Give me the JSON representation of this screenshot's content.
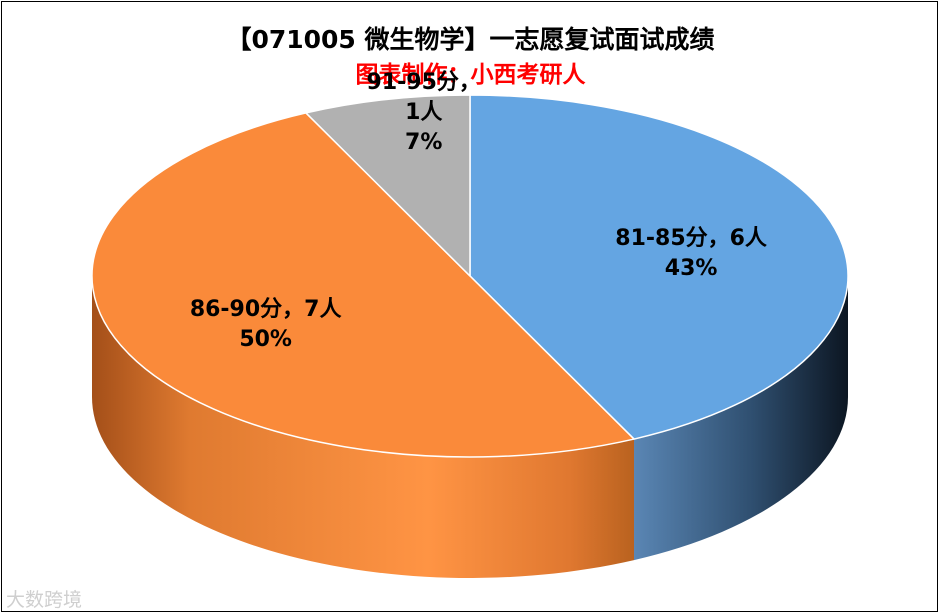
{
  "chart_data": {
    "type": "pie",
    "title": "【071005 微生物学】一志愿复试面试成绩",
    "subtitle": "图表制作：小西考研人",
    "slices": [
      {
        "label": "81-85分，6人",
        "value": 6,
        "percent": "43%",
        "color": "#64A5E2"
      },
      {
        "label": "86-90分，7人",
        "value": 7,
        "percent": "50%",
        "color": "#FA8A3A"
      },
      {
        "label": "91-95分，1人",
        "value": 1,
        "percent": "7%",
        "color": "#B1B1B1"
      }
    ],
    "legend": "none"
  },
  "colors": {
    "subtitle": "#FF0000"
  },
  "watermark": "大数跨境"
}
